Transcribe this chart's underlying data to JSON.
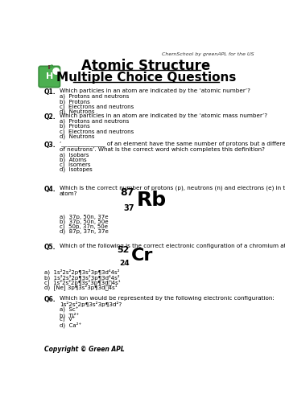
{
  "title1": "Atomic Structure",
  "title2": "Multiple Choice Questions",
  "watermark": "ChemSchool by greenAPL for the US",
  "copyright": "Copyright © Green APL",
  "questions": [
    {
      "num": "Q1.",
      "text": "Which particles in an atom are indicated by the ‘atomic number’?",
      "options": [
        "a)  Protons and neutrons",
        "b)  Protons",
        "c)  Electrons and neutrons",
        "d)  Neutrons"
      ]
    },
    {
      "num": "Q2.",
      "text": "Which particles in an atom are indicated by the ‘atomic mass number’?",
      "options": [
        "a)  Protons and neutrons",
        "b)  Protons",
        "c)  Electrons and neutrons",
        "d)  Neutrons"
      ]
    },
    {
      "num": "Q3.",
      "text": "‘_______________ of an element have the same number of protons but a different number\nof neutrons’. What is the correct word which completes this definition?",
      "options": [
        "a)  Isobars",
        "b)  Atoms",
        "c)  Isomers",
        "d)  Isotopes"
      ]
    },
    {
      "num": "Q4.",
      "text": "Which is the correct number of protons (p), neutrons (n) and electrons (e) in the following\natom?",
      "element_symbol": "Rb",
      "element_mass": "87",
      "element_atomic": "37",
      "options": [
        "a)  37p, 50n, 37e",
        "b)  37p, 50n, 50e",
        "c)  50p, 37n, 50e",
        "d)  87p, 37n, 37e"
      ]
    },
    {
      "num": "Q5.",
      "text": "Which of the following is the correct electronic configuration of a chromium atom?",
      "element_symbol": "Cr",
      "element_mass": "52",
      "element_atomic": "24",
      "options": [
        "a)  1s²2s²2p¶3s²3p¶3d⁴4s²",
        "b)  1s²2s²2p¶3s²3p¶3d⁴4s²",
        "c)  1s²2s²2p¶3s²3p¶3d␕4s¹",
        "d)  [Ne] 3p¶3s²3p¶3d␕4s¹"
      ]
    },
    {
      "num": "Q6.",
      "text": "Which ion would be represented by the following electronic configuration:\n1s²2s²2p¶3s²3p¶3d²?",
      "options": [
        "a)  Sc⁺",
        "b)  Ti²⁺",
        "c)  V⁺",
        "d)  Ca²⁺"
      ]
    }
  ],
  "apple_color": "#4CAF50",
  "apple_outline": "#388E3C",
  "bg_color": "#ffffff"
}
